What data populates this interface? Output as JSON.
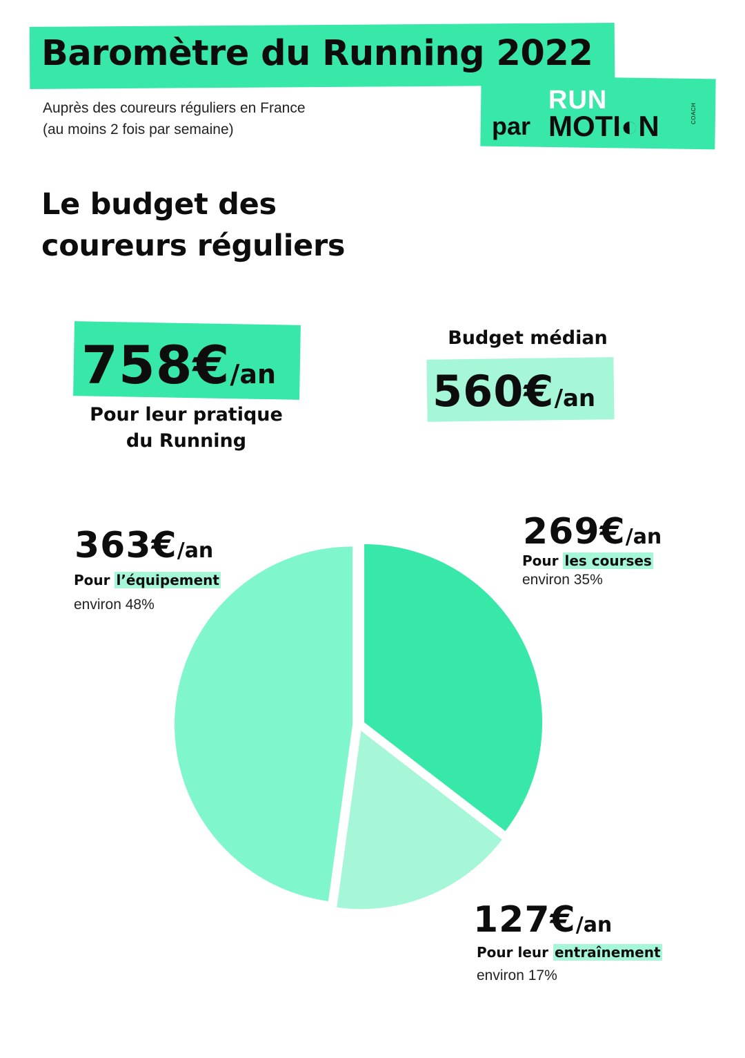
{
  "header": {
    "title": "Baromètre du Running 2022",
    "subtitle_line1": "Auprès des coureurs réguliers en France",
    "subtitle_line2": "(au moins 2 fois par semaine)"
  },
  "logo": {
    "run": "RUN",
    "par": "par",
    "motion": "MOTI◐N",
    "coach": "COACH"
  },
  "section": {
    "title_line1": "Le budget des",
    "title_line2": "coureurs réguliers"
  },
  "total": {
    "value": "758€",
    "unit": "/an",
    "caption_line1": "Pour leur pratique",
    "caption_line2": "du Running"
  },
  "median": {
    "label": "Budget médian",
    "value": "560€",
    "unit": "/an"
  },
  "colors": {
    "accent": "#37e8a8",
    "slice_courses": "#37e8a8",
    "slice_entrainement": "#a6f6d8",
    "slice_equipement": "#7ff6cc",
    "highlight_light": "#a6f6d8"
  },
  "chart_data": {
    "type": "pie",
    "unit": "€/an",
    "slices": [
      {
        "key": "courses",
        "label": "les courses",
        "prefix": "Pour",
        "value": 269,
        "percent_text": "environ 35%",
        "percent": 35
      },
      {
        "key": "entrainement",
        "label": "entraînement",
        "prefix": "Pour leur",
        "value": 127,
        "percent_text": "environ 17%",
        "percent": 17
      },
      {
        "key": "equipement",
        "label": "l’équipement",
        "prefix": "Pour",
        "value": 363,
        "percent_text": "environ 48%",
        "percent": 48
      }
    ],
    "value_labels": {
      "courses": "269€",
      "entrainement": "127€",
      "equipement": "363€"
    },
    "unit_label": "/an"
  }
}
